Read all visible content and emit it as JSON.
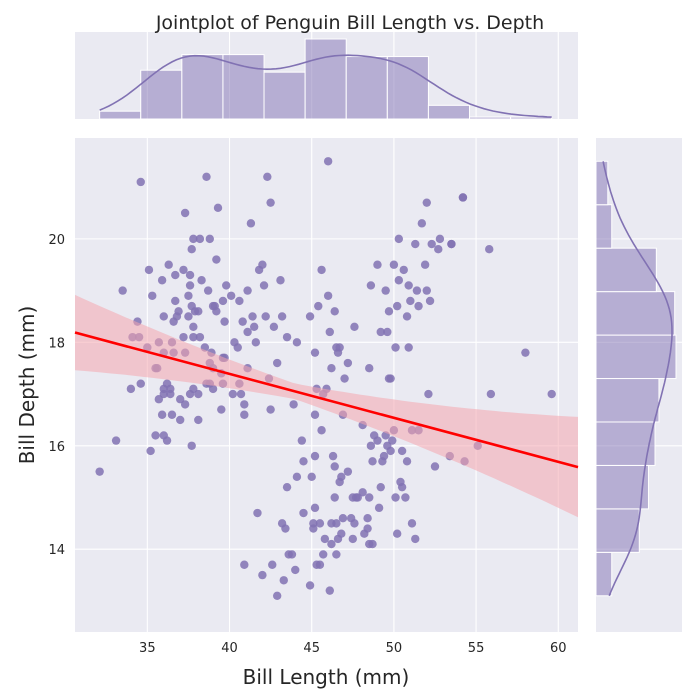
{
  "chart_data": {
    "type": "scatter",
    "title": "Jointplot of Penguin Bill Length vs. Depth",
    "xlabel": "Bill Length (mm)",
    "ylabel": "Bill Depth (mm)",
    "xlim": [
      30.6,
      61.2
    ],
    "ylim": [
      12.4,
      21.95
    ],
    "xticks": [
      35,
      40,
      45,
      50,
      55,
      60
    ],
    "yticks": [
      14,
      16,
      18,
      20
    ],
    "grid": true,
    "colors": {
      "points": "#8172b3",
      "regression": "#ff0000",
      "ci_band": "#f4a6ae",
      "panel_bg": "#eaeaf2",
      "grid": "#ffffff"
    },
    "regression": {
      "intercept": 20.79,
      "slope": -0.085,
      "ci_band_color": "pink"
    },
    "marginal_x_hist": {
      "bin_edges": [
        32.1,
        34.6,
        37.1,
        39.6,
        42.1,
        44.6,
        47.1,
        49.6,
        52.1,
        54.6,
        57.1,
        59.6
      ],
      "counts": [
        4,
        25,
        33,
        33,
        24,
        41,
        32,
        32,
        7,
        1,
        1
      ]
    },
    "marginal_y_hist": {
      "bin_edges": [
        13.1,
        13.94,
        14.78,
        15.62,
        16.46,
        17.3,
        18.14,
        18.98,
        19.82,
        20.66,
        21.5
      ],
      "counts": [
        12,
        33,
        40,
        45,
        48,
        61,
        60,
        46,
        12,
        9
      ]
    },
    "points": [
      [
        32.1,
        15.5
      ],
      [
        33.1,
        16.1
      ],
      [
        33.5,
        19.0
      ],
      [
        34.0,
        17.1
      ],
      [
        34.1,
        18.1
      ],
      [
        34.4,
        18.4
      ],
      [
        34.5,
        18.1
      ],
      [
        34.6,
        21.1
      ],
      [
        34.6,
        17.2
      ],
      [
        35.0,
        17.9
      ],
      [
        35.1,
        19.4
      ],
      [
        35.2,
        15.9
      ],
      [
        35.3,
        18.9
      ],
      [
        35.5,
        16.2
      ],
      [
        35.5,
        17.5
      ],
      [
        35.6,
        17.5
      ],
      [
        35.7,
        16.9
      ],
      [
        35.7,
        18.0
      ],
      [
        35.9,
        16.6
      ],
      [
        35.9,
        19.2
      ],
      [
        36.0,
        16.2
      ],
      [
        36.0,
        17.0
      ],
      [
        36.0,
        17.1
      ],
      [
        36.0,
        17.8
      ],
      [
        36.0,
        18.5
      ],
      [
        36.2,
        16.1
      ],
      [
        36.2,
        17.2
      ],
      [
        36.3,
        19.5
      ],
      [
        36.4,
        17.0
      ],
      [
        36.4,
        17.1
      ],
      [
        36.5,
        16.6
      ],
      [
        36.5,
        18.0
      ],
      [
        36.6,
        17.8
      ],
      [
        36.6,
        18.4
      ],
      [
        36.7,
        18.8
      ],
      [
        36.7,
        19.3
      ],
      [
        36.8,
        18.5
      ],
      [
        36.9,
        18.6
      ],
      [
        37.0,
        16.5
      ],
      [
        37.0,
        16.9
      ],
      [
        37.2,
        18.1
      ],
      [
        37.2,
        19.4
      ],
      [
        37.3,
        16.8
      ],
      [
        37.3,
        17.8
      ],
      [
        37.3,
        20.5
      ],
      [
        37.5,
        18.5
      ],
      [
        37.5,
        18.9
      ],
      [
        37.6,
        17.0
      ],
      [
        37.6,
        19.1
      ],
      [
        37.6,
        19.3
      ],
      [
        37.7,
        16.0
      ],
      [
        37.7,
        18.7
      ],
      [
        37.7,
        19.8
      ],
      [
        37.8,
        17.1
      ],
      [
        37.8,
        18.1
      ],
      [
        37.8,
        18.3
      ],
      [
        37.8,
        20.0
      ],
      [
        37.9,
        18.6
      ],
      [
        38.1,
        16.5
      ],
      [
        38.1,
        17.0
      ],
      [
        38.1,
        18.6
      ],
      [
        38.2,
        18.1
      ],
      [
        38.2,
        20.0
      ],
      [
        38.3,
        19.2
      ],
      [
        38.5,
        17.9
      ],
      [
        38.6,
        17.2
      ],
      [
        38.6,
        21.2
      ],
      [
        38.7,
        19.0
      ],
      [
        38.8,
        17.2
      ],
      [
        38.8,
        17.6
      ],
      [
        38.8,
        20.0
      ],
      [
        38.9,
        17.8
      ],
      [
        39.0,
        17.1
      ],
      [
        39.0,
        17.5
      ],
      [
        39.0,
        18.7
      ],
      [
        39.1,
        18.7
      ],
      [
        39.2,
        18.6
      ],
      [
        39.2,
        19.6
      ],
      [
        39.3,
        20.6
      ],
      [
        39.5,
        16.7
      ],
      [
        39.5,
        17.4
      ],
      [
        39.6,
        17.2
      ],
      [
        39.6,
        17.7
      ],
      [
        39.6,
        18.8
      ],
      [
        39.7,
        17.7
      ],
      [
        39.7,
        18.4
      ],
      [
        39.8,
        19.1
      ],
      [
        40.1,
        18.9
      ],
      [
        40.2,
        17.0
      ],
      [
        40.3,
        18.0
      ],
      [
        40.5,
        17.9
      ],
      [
        40.6,
        17.2
      ],
      [
        40.6,
        18.8
      ],
      [
        40.7,
        17.0
      ],
      [
        40.8,
        18.4
      ],
      [
        40.9,
        16.8
      ],
      [
        41.1,
        17.5
      ],
      [
        41.1,
        18.2
      ],
      [
        41.1,
        19.0
      ],
      [
        41.3,
        20.3
      ],
      [
        41.4,
        18.5
      ],
      [
        41.5,
        18.3
      ],
      [
        41.6,
        18.0
      ],
      [
        41.8,
        19.4
      ],
      [
        42.0,
        19.5
      ],
      [
        42.1,
        19.1
      ],
      [
        42.2,
        18.5
      ],
      [
        42.3,
        21.2
      ],
      [
        42.5,
        20.7
      ],
      [
        42.7,
        18.3
      ],
      [
        42.9,
        17.6
      ],
      [
        43.1,
        19.2
      ],
      [
        43.2,
        18.5
      ],
      [
        44.1,
        18.0
      ],
      [
        44.5,
        15.7
      ],
      [
        45.2,
        16.6
      ],
      [
        45.5,
        13.7
      ],
      [
        46.1,
        13.2
      ],
      [
        46.5,
        14.5
      ],
      [
        47.5,
        14.2
      ],
      [
        48.5,
        14.1
      ],
      [
        49.0,
        16.1
      ],
      [
        49.3,
        15.7
      ],
      [
        50.0,
        16.3
      ],
      [
        50.5,
        15.9
      ],
      [
        51.1,
        16.3
      ],
      [
        52.1,
        17.0
      ],
      [
        46.4,
        18.6
      ],
      [
        49.2,
        18.2
      ],
      [
        50.0,
        19.5
      ],
      [
        51.3,
        19.9
      ],
      [
        52.7,
        19.8
      ],
      [
        45.4,
        18.7
      ],
      [
        46.5,
        17.9
      ],
      [
        50.9,
        19.1
      ],
      [
        49.8,
        17.3
      ],
      [
        45.2,
        17.8
      ],
      [
        47.0,
        17.3
      ],
      [
        53.5,
        19.9
      ],
      [
        50.6,
        19.4
      ],
      [
        46.9,
        16.6
      ],
      [
        55.8,
        19.8
      ],
      [
        58.0,
        17.8
      ],
      [
        54.2,
        20.8
      ],
      [
        52.0,
        20.7
      ],
      [
        49.5,
        19.0
      ],
      [
        51.4,
        19.0
      ],
      [
        50.3,
        20.0
      ],
      [
        46.1,
        18.2
      ],
      [
        42.5,
        16.7
      ],
      [
        48.1,
        16.4
      ],
      [
        47.8,
        15.0
      ],
      [
        43.2,
        14.5
      ],
      [
        46.2,
        14.5
      ],
      [
        45.1,
        14.5
      ],
      [
        46.8,
        15.4
      ],
      [
        40.9,
        13.7
      ],
      [
        43.5,
        15.2
      ],
      [
        44.9,
        13.3
      ],
      [
        45.3,
        13.7
      ],
      [
        49.6,
        16.0
      ],
      [
        50.8,
        15.7
      ],
      [
        46.7,
        15.3
      ],
      [
        59.6,
        17.0
      ],
      [
        49.2,
        15.2
      ],
      [
        48.4,
        14.6
      ],
      [
        44.0,
        13.6
      ],
      [
        49.1,
        14.8
      ],
      [
        43.3,
        13.4
      ],
      [
        45.7,
        13.9
      ],
      [
        50.4,
        15.3
      ],
      [
        46.3,
        15.8
      ],
      [
        48.7,
        14.1
      ],
      [
        48.2,
        14.3
      ],
      [
        51.3,
        14.2
      ],
      [
        52.5,
        15.6
      ],
      [
        47.7,
        15.0
      ],
      [
        46.4,
        15.6
      ],
      [
        42.0,
        13.5
      ],
      [
        49.5,
        16.2
      ],
      [
        45.5,
        14.5
      ],
      [
        43.8,
        13.9
      ],
      [
        50.7,
        15.0
      ],
      [
        47.2,
        15.5
      ],
      [
        55.9,
        17.0
      ],
      [
        54.3,
        15.7
      ],
      [
        55.1,
        16.0
      ],
      [
        53.4,
        15.8
      ],
      [
        51.5,
        16.3
      ],
      [
        45.8,
        14.2
      ],
      [
        48.6,
        16.0
      ],
      [
        46.0,
        21.5
      ],
      [
        44.9,
        18.5
      ],
      [
        47.2,
        17.6
      ],
      [
        45.3,
        17.1
      ],
      [
        43.9,
        16.8
      ],
      [
        44.1,
        15.4
      ],
      [
        46.9,
        14.6
      ],
      [
        45.2,
        15.8
      ],
      [
        43.4,
        14.4
      ],
      [
        42.9,
        13.1
      ],
      [
        44.4,
        16.1
      ],
      [
        48.8,
        16.2
      ],
      [
        50.2,
        14.3
      ],
      [
        51.1,
        14.5
      ],
      [
        47.6,
        14.5
      ],
      [
        41.7,
        14.7
      ],
      [
        49.4,
        15.8
      ],
      [
        48.5,
        15.0
      ],
      [
        46.2,
        14.1
      ],
      [
        46.8,
        14.3
      ],
      [
        45.0,
        15.4
      ],
      [
        46.5,
        13.9
      ],
      [
        47.4,
        14.6
      ],
      [
        43.6,
        13.9
      ],
      [
        47.5,
        15.0
      ],
      [
        49.8,
        15.9
      ],
      [
        46.6,
        14.2
      ],
      [
        48.4,
        14.4
      ],
      [
        45.1,
        14.4
      ],
      [
        42.6,
        13.7
      ],
      [
        50.1,
        15.0
      ],
      [
        48.1,
        15.1
      ],
      [
        44.5,
        14.7
      ],
      [
        46.4,
        15.0
      ],
      [
        45.2,
        14.8
      ],
      [
        49.9,
        16.1
      ],
      [
        48.7,
        15.7
      ],
      [
        50.5,
        15.2
      ],
      [
        49.7,
        18.6
      ],
      [
        52.2,
        18.8
      ],
      [
        50.9,
        17.9
      ],
      [
        51.9,
        19.5
      ],
      [
        45.9,
        17.1
      ],
      [
        50.1,
        17.9
      ],
      [
        49.7,
        17.3
      ],
      [
        46.7,
        17.9
      ],
      [
        45.6,
        19.4
      ],
      [
        42.4,
        17.3
      ],
      [
        48.5,
        17.5
      ],
      [
        43.5,
        18.1
      ],
      [
        40.9,
        16.6
      ],
      [
        52.0,
        19.0
      ],
      [
        51.0,
        18.8
      ],
      [
        50.2,
        18.7
      ],
      [
        49.0,
        19.5
      ],
      [
        50.8,
        18.5
      ],
      [
        51.5,
        18.7
      ],
      [
        49.6,
        18.2
      ],
      [
        52.8,
        20.0
      ],
      [
        53.5,
        19.9
      ],
      [
        45.7,
        17.0
      ],
      [
        47.6,
        18.3
      ],
      [
        46.6,
        17.8
      ],
      [
        51.7,
        20.3
      ],
      [
        54.2,
        20.8
      ],
      [
        50.3,
        19.2
      ],
      [
        46.2,
        17.5
      ],
      [
        48.6,
        19.1
      ],
      [
        46.0,
        18.9
      ],
      [
        45.6,
        16.3
      ],
      [
        52.3,
        19.9
      ]
    ]
  }
}
